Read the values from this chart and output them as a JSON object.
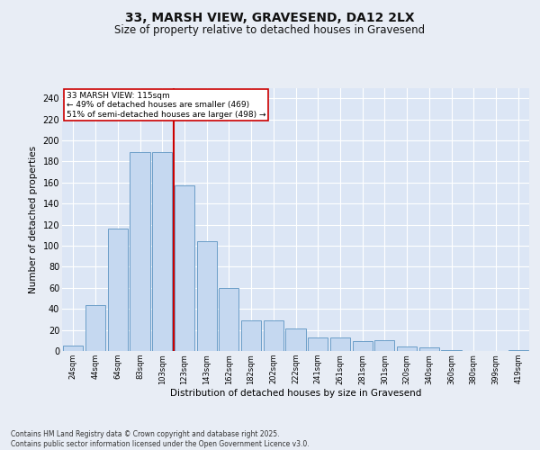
{
  "title1": "33, MARSH VIEW, GRAVESEND, DA12 2LX",
  "title2": "Size of property relative to detached houses in Gravesend",
  "xlabel": "Distribution of detached houses by size in Gravesend",
  "ylabel": "Number of detached properties",
  "categories": [
    "24sqm",
    "44sqm",
    "64sqm",
    "83sqm",
    "103sqm",
    "123sqm",
    "143sqm",
    "162sqm",
    "182sqm",
    "202sqm",
    "222sqm",
    "241sqm",
    "261sqm",
    "281sqm",
    "301sqm",
    "320sqm",
    "340sqm",
    "360sqm",
    "380sqm",
    "399sqm",
    "419sqm"
  ],
  "values": [
    5,
    44,
    116,
    189,
    189,
    157,
    104,
    60,
    29,
    29,
    21,
    13,
    13,
    9,
    10,
    4,
    3,
    1,
    0,
    0,
    1
  ],
  "bar_color": "#c5d8f0",
  "bar_edge_color": "#6b9ec8",
  "background_color": "#dce6f5",
  "grid_color": "#ffffff",
  "vline_x": 4.5,
  "vline_color": "#cc0000",
  "annotation_line1": "33 MARSH VIEW: 115sqm",
  "annotation_line2": "← 49% of detached houses are smaller (469)",
  "annotation_line3": "51% of semi-detached houses are larger (498) →",
  "annotation_box_color": "#ffffff",
  "annotation_box_edge": "#cc0000",
  "footer_text": "Contains HM Land Registry data © Crown copyright and database right 2025.\nContains public sector information licensed under the Open Government Licence v3.0.",
  "fig_bg": "#e8edf5",
  "ylim": [
    0,
    250
  ],
  "yticks": [
    0,
    20,
    40,
    60,
    80,
    100,
    120,
    140,
    160,
    180,
    200,
    220,
    240
  ]
}
